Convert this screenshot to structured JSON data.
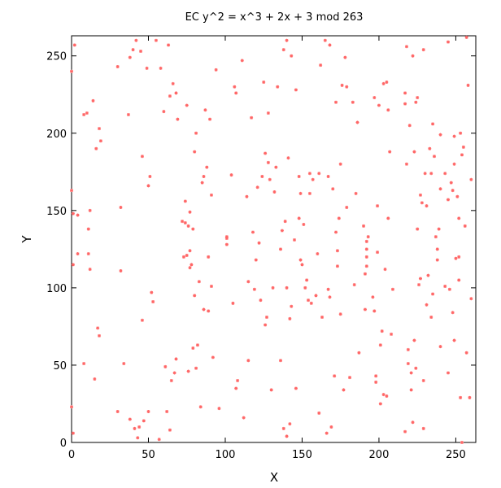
{
  "chart_data": {
    "type": "scatter",
    "title": "EC y^2 = x^3 + 2x + 3 mod 263",
    "xlabel": "X",
    "ylabel": "Y",
    "xlim": [
      0,
      263
    ],
    "ylim": [
      0,
      263
    ],
    "xticks": [
      0,
      50,
      100,
      150,
      200,
      250
    ],
    "yticks": [
      0,
      50,
      100,
      150,
      200,
      250
    ],
    "grid": false,
    "legend": "none",
    "marker_color": "#ff6666",
    "points": [
      [
        0,
        240
      ],
      [
        0,
        163
      ],
      [
        0,
        23
      ],
      [
        1,
        6
      ],
      [
        1,
        148
      ],
      [
        1,
        115
      ],
      [
        2,
        257
      ],
      [
        4,
        147
      ],
      [
        4,
        122
      ],
      [
        8,
        212
      ],
      [
        8,
        51
      ],
      [
        10,
        213
      ],
      [
        11,
        138
      ],
      [
        11,
        122
      ],
      [
        12,
        150
      ],
      [
        12,
        112
      ],
      [
        14,
        221
      ],
      [
        15,
        41
      ],
      [
        16,
        190
      ],
      [
        17,
        74
      ],
      [
        18,
        203
      ],
      [
        18,
        69
      ],
      [
        19,
        195
      ],
      [
        30,
        243
      ],
      [
        30,
        20
      ],
      [
        32,
        152
      ],
      [
        32,
        111
      ],
      [
        34,
        51
      ],
      [
        37,
        212
      ],
      [
        38,
        15
      ],
      [
        38,
        249
      ],
      [
        40,
        254
      ],
      [
        41,
        9
      ],
      [
        42,
        260
      ],
      [
        43,
        3
      ],
      [
        44,
        10
      ],
      [
        45,
        253
      ],
      [
        46,
        185
      ],
      [
        46,
        79
      ],
      [
        47,
        14
      ],
      [
        49,
        242
      ],
      [
        50,
        166
      ],
      [
        50,
        20
      ],
      [
        51,
        172
      ],
      [
        52,
        97
      ],
      [
        53,
        91
      ],
      [
        55,
        260
      ],
      [
        57,
        2
      ],
      [
        58,
        242
      ],
      [
        60,
        214
      ],
      [
        61,
        49
      ],
      [
        62,
        20
      ],
      [
        63,
        257
      ],
      [
        64,
        224
      ],
      [
        64,
        8
      ],
      [
        65,
        40
      ],
      [
        66,
        232
      ],
      [
        67,
        45
      ],
      [
        68,
        226
      ],
      [
        68,
        54
      ],
      [
        69,
        209
      ],
      [
        72,
        143
      ],
      [
        73,
        120
      ],
      [
        74,
        156
      ],
      [
        74,
        142
      ],
      [
        75,
        121
      ],
      [
        75,
        218
      ],
      [
        76,
        140
      ],
      [
        76,
        46
      ],
      [
        77,
        124
      ],
      [
        77,
        113
      ],
      [
        77,
        149
      ],
      [
        78,
        115
      ],
      [
        79,
        138
      ],
      [
        79,
        61
      ],
      [
        80,
        188
      ],
      [
        80,
        95
      ],
      [
        81,
        48
      ],
      [
        81,
        200
      ],
      [
        82,
        63
      ],
      [
        83,
        104
      ],
      [
        84,
        23
      ],
      [
        85,
        168
      ],
      [
        86,
        86
      ],
      [
        86,
        172
      ],
      [
        87,
        215
      ],
      [
        88,
        178
      ],
      [
        89,
        120
      ],
      [
        89,
        85
      ],
      [
        90,
        209
      ],
      [
        91,
        101
      ],
      [
        91,
        160
      ],
      [
        92,
        55
      ],
      [
        94,
        241
      ],
      [
        96,
        22
      ],
      [
        101,
        132
      ],
      [
        101,
        128
      ],
      [
        101,
        133
      ],
      [
        104,
        173
      ],
      [
        105,
        90
      ],
      [
        106,
        230
      ],
      [
        107,
        35
      ],
      [
        107,
        226
      ],
      [
        108,
        40
      ],
      [
        111,
        247
      ],
      [
        112,
        16
      ],
      [
        114,
        159
      ],
      [
        115,
        104
      ],
      [
        115,
        53
      ],
      [
        117,
        210
      ],
      [
        118,
        136
      ],
      [
        119,
        99
      ],
      [
        120,
        118
      ],
      [
        121,
        165
      ],
      [
        122,
        129
      ],
      [
        123,
        92
      ],
      [
        124,
        172
      ],
      [
        125,
        233
      ],
      [
        126,
        76
      ],
      [
        126,
        187
      ],
      [
        127,
        81
      ],
      [
        128,
        181
      ],
      [
        128,
        213
      ],
      [
        129,
        170
      ],
      [
        130,
        34
      ],
      [
        131,
        100
      ],
      [
        132,
        162
      ],
      [
        133,
        178
      ],
      [
        134,
        230
      ],
      [
        136,
        53
      ],
      [
        136,
        125
      ],
      [
        137,
        137
      ],
      [
        138,
        9
      ],
      [
        138,
        254
      ],
      [
        139,
        143
      ],
      [
        140,
        100
      ],
      [
        140,
        4
      ],
      [
        140,
        260
      ],
      [
        141,
        184
      ],
      [
        142,
        12
      ],
      [
        142,
        80
      ],
      [
        143,
        250
      ],
      [
        143,
        88
      ],
      [
        145,
        131
      ],
      [
        146,
        228
      ],
      [
        146,
        35
      ],
      [
        148,
        145
      ],
      [
        148,
        172
      ],
      [
        149,
        118
      ],
      [
        149,
        161
      ],
      [
        150,
        115
      ],
      [
        151,
        141
      ],
      [
        152,
        100
      ],
      [
        153,
        105
      ],
      [
        154,
        92
      ],
      [
        155,
        174
      ],
      [
        155,
        161
      ],
      [
        156,
        90
      ],
      [
        157,
        170
      ],
      [
        159,
        95
      ],
      [
        160,
        122
      ],
      [
        161,
        174
      ],
      [
        161,
        19
      ],
      [
        162,
        244
      ],
      [
        163,
        81
      ],
      [
        165,
        260
      ],
      [
        166,
        6
      ],
      [
        167,
        99
      ],
      [
        167,
        172
      ],
      [
        168,
        94
      ],
      [
        168,
        257
      ],
      [
        169,
        10
      ],
      [
        170,
        164
      ],
      [
        171,
        43
      ],
      [
        172,
        220
      ],
      [
        172,
        136
      ],
      [
        173,
        124
      ],
      [
        173,
        114
      ],
      [
        174,
        145
      ],
      [
        175,
        180
      ],
      [
        175,
        83
      ],
      [
        176,
        231
      ],
      [
        177,
        34
      ],
      [
        178,
        249
      ],
      [
        179,
        152
      ],
      [
        179,
        230
      ],
      [
        181,
        42
      ],
      [
        183,
        220
      ],
      [
        184,
        102
      ],
      [
        185,
        161
      ],
      [
        186,
        207
      ],
      [
        187,
        58
      ],
      [
        190,
        140
      ],
      [
        191,
        109
      ],
      [
        191,
        86
      ],
      [
        192,
        130
      ],
      [
        192,
        125
      ],
      [
        192,
        114
      ],
      [
        192,
        120
      ],
      [
        193,
        133
      ],
      [
        196,
        94
      ],
      [
        197,
        223
      ],
      [
        197,
        85
      ],
      [
        198,
        39
      ],
      [
        198,
        43
      ],
      [
        199,
        153
      ],
      [
        199,
        123
      ],
      [
        200,
        218
      ],
      [
        201,
        25
      ],
      [
        201,
        63
      ],
      [
        202,
        72
      ],
      [
        203,
        232
      ],
      [
        203,
        31
      ],
      [
        204,
        112
      ],
      [
        205,
        233
      ],
      [
        205,
        30
      ],
      [
        206,
        215
      ],
      [
        206,
        145
      ],
      [
        207,
        188
      ],
      [
        208,
        70
      ],
      [
        209,
        99
      ],
      [
        217,
        219
      ],
      [
        217,
        226
      ],
      [
        217,
        7
      ],
      [
        218,
        180
      ],
      [
        218,
        256
      ],
      [
        219,
        60
      ],
      [
        219,
        51
      ],
      [
        220,
        205
      ],
      [
        221,
        34
      ],
      [
        221,
        45
      ],
      [
        222,
        13
      ],
      [
        222,
        250
      ],
      [
        223,
        66
      ],
      [
        223,
        188
      ],
      [
        224,
        220
      ],
      [
        224,
        48
      ],
      [
        225,
        138
      ],
      [
        225,
        223
      ],
      [
        226,
        102
      ],
      [
        227,
        160
      ],
      [
        227,
        106
      ],
      [
        228,
        155
      ],
      [
        229,
        40
      ],
      [
        229,
        9
      ],
      [
        229,
        254
      ],
      [
        230,
        174
      ],
      [
        231,
        89
      ],
      [
        231,
        153
      ],
      [
        232,
        108
      ],
      [
        233,
        190
      ],
      [
        234,
        174
      ],
      [
        234,
        81
      ],
      [
        235,
        206
      ],
      [
        235,
        96
      ],
      [
        236,
        185
      ],
      [
        237,
        133
      ],
      [
        238,
        118
      ],
      [
        238,
        125
      ],
      [
        239,
        138
      ],
      [
        240,
        62
      ],
      [
        240,
        199
      ],
      [
        240,
        164
      ],
      [
        243,
        101
      ],
      [
        243,
        174
      ],
      [
        245,
        45
      ],
      [
        245,
        259
      ],
      [
        245,
        157
      ],
      [
        246,
        99
      ],
      [
        247,
        168
      ],
      [
        248,
        163
      ],
      [
        248,
        84
      ],
      [
        249,
        66
      ],
      [
        249,
        198
      ],
      [
        249,
        180
      ],
      [
        250,
        119
      ],
      [
        251,
        159
      ],
      [
        252,
        145
      ],
      [
        252,
        105
      ],
      [
        252,
        120
      ],
      [
        253,
        29
      ],
      [
        253,
        200
      ],
      [
        254,
        186
      ],
      [
        254,
        0
      ],
      [
        255,
        191
      ],
      [
        257,
        262
      ],
      [
        258,
        231
      ],
      [
        259,
        29
      ],
      [
        260,
        170
      ],
      [
        260,
        93
      ],
      [
        257,
        58
      ],
      [
        256,
        140
      ]
    ]
  }
}
